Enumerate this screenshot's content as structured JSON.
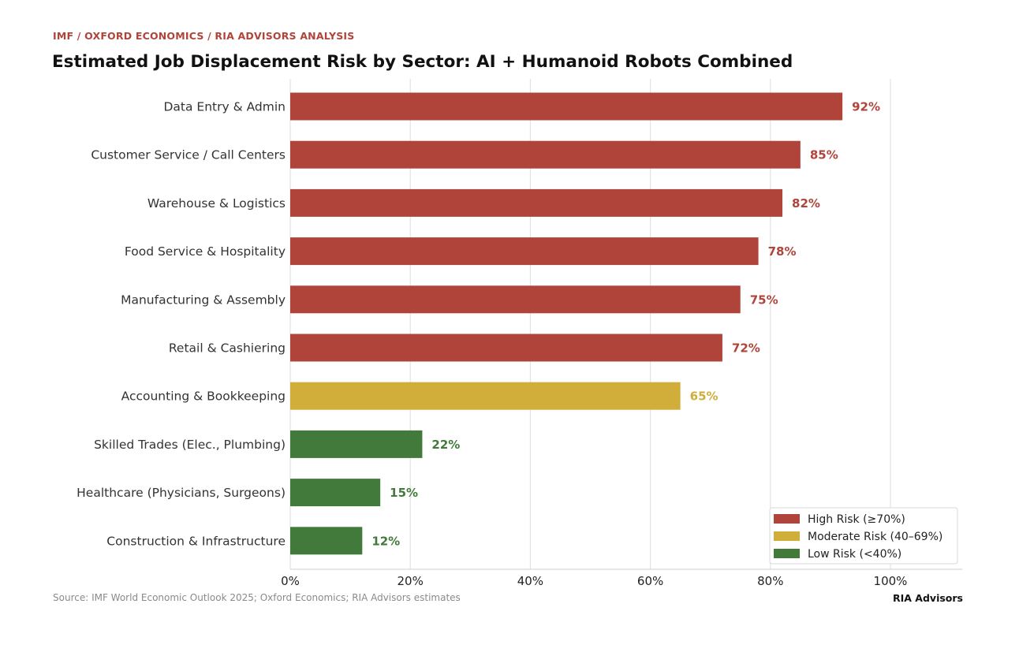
{
  "header": {
    "kicker": "IMF / OXFORD ECONOMICS / RIA ADVISORS ANALYSIS",
    "title": "Estimated Job Displacement Risk by Sector: AI + Humanoid Robots Combined"
  },
  "footer": {
    "source": "Source: IMF World Economic Outlook 2025; Oxford Economics; RIA Advisors estimates",
    "brand": "RIA Advisors"
  },
  "colors": {
    "high": "#b0443a",
    "moderate": "#d1ad3a",
    "low": "#427a3b"
  },
  "chart_data": {
    "type": "bar",
    "orientation": "horizontal",
    "title": "Estimated Job Displacement Risk by Sector: AI + Humanoid Robots Combined",
    "xlabel": "",
    "ylabel": "",
    "xlim": [
      0,
      112
    ],
    "grid": true,
    "legend_position": "lower right",
    "categories": [
      "Data Entry & Admin",
      "Customer Service / Call Centers",
      "Warehouse & Logistics",
      "Food Service & Hospitality",
      "Manufacturing & Assembly",
      "Retail & Cashiering",
      "Accounting & Bookkeeping",
      "Skilled Trades (Elec., Plumbing)",
      "Healthcare (Physicians, Surgeons)",
      "Construction & Infrastructure"
    ],
    "values": [
      92,
      85,
      82,
      78,
      75,
      72,
      65,
      22,
      15,
      12
    ],
    "value_labels": [
      "92%",
      "85%",
      "82%",
      "78%",
      "75%",
      "72%",
      "65%",
      "22%",
      "15%",
      "12%"
    ],
    "risk_levels": [
      "high",
      "high",
      "high",
      "high",
      "high",
      "high",
      "moderate",
      "low",
      "low",
      "low"
    ],
    "x_ticks": [
      0,
      20,
      40,
      60,
      80,
      100
    ],
    "x_tick_labels": [
      "0%",
      "20%",
      "40%",
      "60%",
      "80%",
      "100%"
    ],
    "legend": [
      {
        "key": "high",
        "label": "High Risk (≥70%)"
      },
      {
        "key": "moderate",
        "label": "Moderate Risk (40–69%)"
      },
      {
        "key": "low",
        "label": "Low Risk (<40%)"
      }
    ]
  }
}
